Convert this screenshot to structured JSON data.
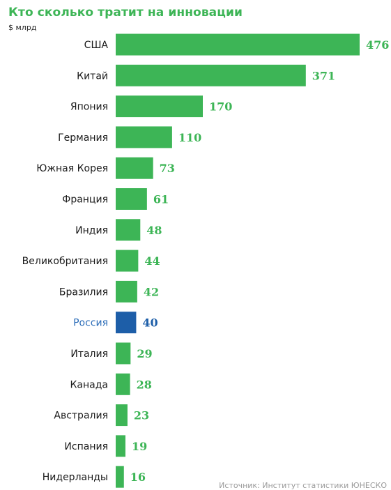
{
  "header": {
    "title": "Кто сколько тратит на инновации",
    "unit": "$ млрд"
  },
  "footer": {
    "source": "Источник: Институт статистики ЮНЕСКО"
  },
  "colors": {
    "bar": "#3db556",
    "highlight_bar": "#1d5ea8",
    "label": "#1a1a1a",
    "highlight_label": "#2b6cb8",
    "value": "#3db556",
    "highlight_value": "#1d5ea8",
    "title": "#3db556"
  },
  "chart_data": {
    "type": "bar",
    "orientation": "horizontal",
    "title": "Кто сколько тратит на инновации",
    "unit": "$ млрд",
    "categories": [
      "США",
      "Китай",
      "Япония",
      "Германия",
      "Южная Корея",
      "Франция",
      "Индия",
      "Великобритания",
      "Бразилия",
      "Россия",
      "Италия",
      "Канада",
      "Австралия",
      "Испания",
      "Нидерланды"
    ],
    "values": [
      476,
      371,
      170,
      110,
      73,
      61,
      48,
      44,
      42,
      40,
      29,
      28,
      23,
      19,
      16
    ],
    "highlight": "Россия",
    "grid": false,
    "legend": "none"
  }
}
